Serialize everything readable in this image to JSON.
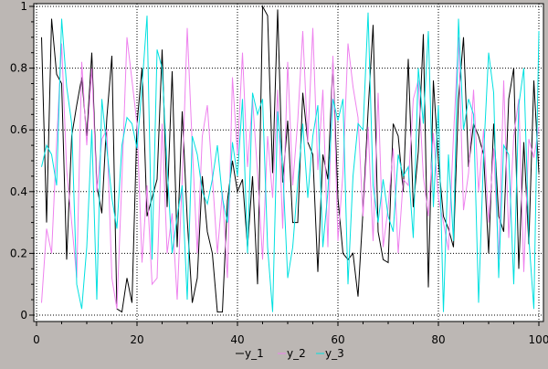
{
  "chart_data": {
    "type": "line",
    "title": "",
    "xlabel": "",
    "ylabel": "",
    "xlim": [
      0,
      100
    ],
    "ylim": [
      0,
      1
    ],
    "xticks": [
      0,
      20,
      40,
      60,
      80,
      100
    ],
    "yticks": [
      0,
      0.2,
      0.4,
      0.6,
      0.8,
      1
    ],
    "xtick_labels": [
      "0",
      "20",
      "40",
      "60",
      "80",
      "100"
    ],
    "ytick_labels": [
      "0",
      "0.2",
      "0.4",
      "0.6",
      "0.8",
      "1"
    ],
    "grid": true,
    "legend_position": "bottom-center",
    "x": [
      1,
      2,
      3,
      4,
      5,
      6,
      7,
      8,
      9,
      10,
      11,
      12,
      13,
      14,
      15,
      16,
      17,
      18,
      19,
      20,
      21,
      22,
      23,
      24,
      25,
      26,
      27,
      28,
      29,
      30,
      31,
      32,
      33,
      34,
      35,
      36,
      37,
      38,
      39,
      40,
      41,
      42,
      43,
      44,
      45,
      46,
      47,
      48,
      49,
      50,
      51,
      52,
      53,
      54,
      55,
      56,
      57,
      58,
      59,
      60,
      61,
      62,
      63,
      64,
      65,
      66,
      67,
      68,
      69,
      70,
      71,
      72,
      73,
      74,
      75,
      76,
      77,
      78,
      79,
      80,
      81,
      82,
      83,
      84,
      85,
      86,
      87,
      88,
      89,
      90,
      91,
      92,
      93,
      94,
      95,
      96,
      97,
      98,
      99,
      100
    ],
    "series": [
      {
        "name": "y_1",
        "color": "#000000",
        "values": [
          0.9,
          0.3,
          0.96,
          0.78,
          0.75,
          0.18,
          0.58,
          0.68,
          0.77,
          0.58,
          0.85,
          0.42,
          0.33,
          0.64,
          0.84,
          0.02,
          0.01,
          0.12,
          0.04,
          0.62,
          0.8,
          0.32,
          0.38,
          0.44,
          0.86,
          0.35,
          0.79,
          0.22,
          0.66,
          0.31,
          0.04,
          0.12,
          0.45,
          0.27,
          0.2,
          0.01,
          0.01,
          0.37,
          0.5,
          0.4,
          0.44,
          0.22,
          0.45,
          0.1,
          1.0,
          0.97,
          0.46,
          0.99,
          0.43,
          0.63,
          0.3,
          0.3,
          0.72,
          0.56,
          0.52,
          0.14,
          0.52,
          0.44,
          0.82,
          0.38,
          0.2,
          0.18,
          0.2,
          0.06,
          0.34,
          0.66,
          0.94,
          0.27,
          0.18,
          0.17,
          0.62,
          0.58,
          0.4,
          0.83,
          0.35,
          0.53,
          0.91,
          0.09,
          0.76,
          0.5,
          0.32,
          0.28,
          0.22,
          0.7,
          0.9,
          0.48,
          0.62,
          0.58,
          0.52,
          0.2,
          0.62,
          0.32,
          0.27,
          0.7,
          0.8,
          0.15,
          0.56,
          0.23,
          0.76,
          0.46
        ]
      },
      {
        "name": "y_2",
        "color": "#ee82ee",
        "values": [
          0.04,
          0.28,
          0.2,
          0.56,
          0.88,
          0.47,
          0.3,
          0.12,
          0.82,
          0.55,
          0.8,
          0.4,
          0.57,
          0.6,
          0.12,
          0.02,
          0.44,
          0.9,
          0.76,
          0.62,
          0.17,
          0.42,
          0.1,
          0.12,
          0.62,
          0.2,
          0.33,
          0.05,
          0.44,
          0.93,
          0.55,
          0.2,
          0.58,
          0.68,
          0.45,
          0.2,
          0.4,
          0.12,
          0.77,
          0.52,
          0.85,
          0.48,
          0.7,
          0.46,
          0.18,
          0.58,
          0.38,
          0.73,
          0.28,
          0.82,
          0.42,
          0.63,
          0.92,
          0.56,
          0.93,
          0.47,
          0.73,
          0.22,
          0.84,
          0.24,
          0.46,
          0.88,
          0.74,
          0.64,
          0.32,
          0.61,
          0.24,
          0.72,
          0.22,
          0.35,
          0.54,
          0.2,
          0.44,
          0.42,
          0.7,
          0.76,
          0.45,
          0.32,
          0.59,
          0.38,
          0.3,
          0.21,
          0.58,
          0.9,
          0.34,
          0.46,
          0.73,
          0.4,
          0.6,
          0.3,
          0.54,
          0.18,
          0.76,
          0.25,
          0.58,
          0.7,
          0.14,
          0.57,
          0.51,
          0.61
        ]
      },
      {
        "name": "y_3",
        "color": "#00e0e0",
        "values": [
          0.48,
          0.55,
          0.52,
          0.42,
          0.96,
          0.74,
          0.62,
          0.1,
          0.02,
          0.22,
          0.6,
          0.05,
          0.7,
          0.54,
          0.38,
          0.28,
          0.55,
          0.64,
          0.62,
          0.54,
          0.74,
          0.97,
          0.18,
          0.86,
          0.8,
          0.48,
          0.2,
          0.32,
          0.42,
          0.05,
          0.58,
          0.52,
          0.4,
          0.36,
          0.44,
          0.55,
          0.38,
          0.3,
          0.56,
          0.45,
          0.7,
          0.2,
          0.72,
          0.65,
          0.7,
          0.22,
          0.01,
          0.66,
          0.48,
          0.12,
          0.22,
          0.43,
          0.62,
          0.38,
          0.58,
          0.68,
          0.22,
          0.4,
          0.7,
          0.63,
          0.7,
          0.1,
          0.45,
          0.62,
          0.6,
          0.98,
          0.42,
          0.3,
          0.44,
          0.32,
          0.27,
          0.52,
          0.45,
          0.48,
          0.25,
          0.8,
          0.62,
          0.92,
          0.35,
          0.68,
          0.01,
          0.52,
          0.24,
          0.96,
          0.6,
          0.7,
          0.65,
          0.04,
          0.52,
          0.85,
          0.72,
          0.12,
          0.55,
          0.52,
          0.1,
          0.68,
          0.8,
          0.25,
          0.02,
          0.92
        ]
      }
    ]
  }
}
